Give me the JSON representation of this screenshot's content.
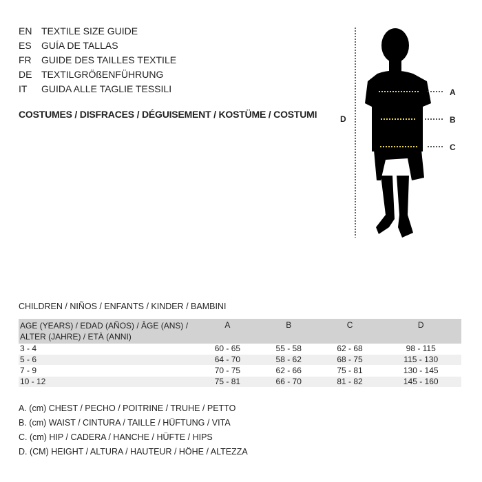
{
  "languages": [
    {
      "code": "EN",
      "text": "TEXTILE SIZE GUIDE"
    },
    {
      "code": "ES",
      "text": "GUÍA DE TALLAS"
    },
    {
      "code": "FR",
      "text": "GUIDE DES TAILLES TEXTILE"
    },
    {
      "code": "DE",
      "text": "TEXTILGRÖßENFÜHRUNG"
    },
    {
      "code": "IT",
      "text": "GUIDA ALLE TAGLIE TESSILI"
    }
  ],
  "category_title": "COSTUMES / DISFRACES / DÉGUISEMENT / KOSTÜME / COSTUMI",
  "figure": {
    "labels": {
      "a": "A",
      "b": "B",
      "c": "C",
      "d": "D"
    },
    "measure_line_color": "#e8d44a"
  },
  "section_title": "CHILDREN / NIÑOS / ENFANTS / KINDER / BAMBINI",
  "table": {
    "headers": [
      "AGE (YEARS) / EDAD (AÑOS) / ÂGE (ANS) / ALTER (JAHRE) / ETÀ (ANNI)",
      "A",
      "B",
      "C",
      "D"
    ],
    "rows": [
      [
        "3 - 4",
        "60 - 65",
        "55 - 58",
        "62 - 68",
        "98 - 115"
      ],
      [
        "5 - 6",
        "64 - 70",
        "58 - 62",
        "68 - 75",
        "115 - 130"
      ],
      [
        "7 - 9",
        "70 - 75",
        "62 - 66",
        "75 - 81",
        "130 - 145"
      ],
      [
        "10 - 12",
        "75 - 81",
        "66 - 70",
        "81 - 82",
        "145 - 160"
      ]
    ]
  },
  "legend": [
    "A. (cm) CHEST / PECHO / POITRINE / TRUHE / PETTO",
    "B. (cm) WAIST / CINTURA / TAILLE / HÜFTUNG / VITA",
    "C. (cm) HIP / CADERA / HANCHE / HÜFTE / HIPS",
    "D. (CM) HEIGHT / ALTURA / HAUTEUR / HÖHE / ALTEZZA"
  ]
}
